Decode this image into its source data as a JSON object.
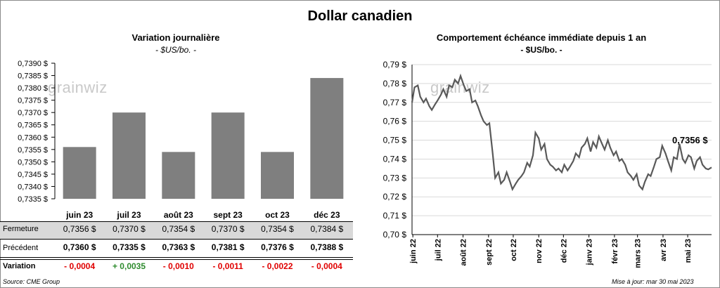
{
  "title": "Dollar canadien",
  "left_chart": {
    "title": "Variation  journalière",
    "unit": "- $US/bo. -"
  },
  "right_chart": {
    "title": "Comportement échéance immédiate depuis 1 an",
    "unit": "- $US/bo. -",
    "last_value_label": "0,7356 $"
  },
  "table": {
    "rows": [
      {
        "label": "Fermeture",
        "values": [
          "0,7356  $",
          "0,7370  $",
          "0,7354  $",
          "0,7370  $",
          "0,7354  $",
          "0,7384  $"
        ]
      },
      {
        "label": "Précédent",
        "values": [
          "0,7360  $",
          "0,7335  $",
          "0,7363  $",
          "0,7381  $",
          "0,7376  $",
          "0,7388  $"
        ]
      },
      {
        "label": "Variation",
        "values": [
          "- 0,0004",
          "+ 0,0035",
          "- 0,0010",
          "- 0,0011",
          "- 0,0022",
          "- 0,0004"
        ]
      }
    ]
  },
  "watermark": "grainwiz",
  "source": "Source: CME Group",
  "updated": "Mise à jour: mar 30 mai 2023",
  "colors": {
    "bar": "#7f7f7f",
    "line": "#595959",
    "positive": "#2e8b2e",
    "negative": "#e00000",
    "table_band": "#d9d9d9"
  },
  "chart_data": [
    {
      "type": "bar",
      "categories": [
        "juin 23",
        "juil 23",
        "août 23",
        "sept 23",
        "oct 23",
        "déc 23"
      ],
      "values": [
        0.7356,
        0.737,
        0.7354,
        0.737,
        0.7354,
        0.7384
      ],
      "ylim": [
        0.7335,
        0.739
      ],
      "yticks": [
        "0,7335 $",
        "0,7340 $",
        "0,7345 $",
        "0,7350 $",
        "0,7355 $",
        "0,7360 $",
        "0,7365 $",
        "0,7370 $",
        "0,7375 $",
        "0,7380 $",
        "0,7385 $",
        "0,7390 $"
      ],
      "grid": false
    },
    {
      "type": "line",
      "ylim": [
        0.7,
        0.79
      ],
      "yticks": [
        "0,70 $",
        "0,71 $",
        "0,72 $",
        "0,73 $",
        "0,74 $",
        "0,75 $",
        "0,76 $",
        "0,77 $",
        "0,78 $",
        "0,79 $"
      ],
      "xticks": [
        "juin 22",
        "juil 22",
        "août 22",
        "sept 22",
        "oct 22",
        "nov 22",
        "déc 22",
        "janv 23",
        "févr 23",
        "mars 23",
        "avr 23",
        "mai 23"
      ],
      "grid": true,
      "series": [
        {
          "x": [
            "2022-05-31",
            "2022-06-03",
            "2022-06-07",
            "2022-06-10",
            "2022-06-14",
            "2022-06-17",
            "2022-06-21",
            "2022-06-24",
            "2022-06-28",
            "2022-07-01",
            "2022-07-05",
            "2022-07-08",
            "2022-07-12",
            "2022-07-15",
            "2022-07-19",
            "2022-07-22",
            "2022-07-26",
            "2022-07-29",
            "2022-08-02",
            "2022-08-05",
            "2022-08-09",
            "2022-08-12",
            "2022-08-16",
            "2022-08-19",
            "2022-08-23",
            "2022-08-26",
            "2022-08-30",
            "2022-09-02",
            "2022-09-06",
            "2022-09-09",
            "2022-09-13",
            "2022-09-16",
            "2022-09-20",
            "2022-09-23",
            "2022-09-27",
            "2022-09-30",
            "2022-10-04",
            "2022-10-07",
            "2022-10-11",
            "2022-10-14",
            "2022-10-18",
            "2022-10-21",
            "2022-10-25",
            "2022-10-28",
            "2022-11-01",
            "2022-11-04",
            "2022-11-08",
            "2022-11-11",
            "2022-11-15",
            "2022-11-18",
            "2022-11-22",
            "2022-11-25",
            "2022-11-29",
            "2022-12-02",
            "2022-12-06",
            "2022-12-09",
            "2022-12-13",
            "2022-12-16",
            "2022-12-20",
            "2022-12-23",
            "2022-12-27",
            "2022-12-30",
            "2023-01-03",
            "2023-01-06",
            "2023-01-10",
            "2023-01-13",
            "2023-01-17",
            "2023-01-20",
            "2023-01-24",
            "2023-01-27",
            "2023-01-31",
            "2023-02-03",
            "2023-02-07",
            "2023-02-10",
            "2023-02-14",
            "2023-02-17",
            "2023-02-21",
            "2023-02-24",
            "2023-02-28",
            "2023-03-03",
            "2023-03-07",
            "2023-03-10",
            "2023-03-14",
            "2023-03-17",
            "2023-03-21",
            "2023-03-24",
            "2023-03-28",
            "2023-03-31",
            "2023-04-04",
            "2023-04-07",
            "2023-04-11",
            "2023-04-14",
            "2023-04-18",
            "2023-04-21",
            "2023-04-25",
            "2023-04-28",
            "2023-05-02",
            "2023-05-05",
            "2023-05-09",
            "2023-05-12",
            "2023-05-16",
            "2023-05-19",
            "2023-05-23",
            "2023-05-26",
            "2023-05-30"
          ],
          "values": [
            0.77,
            0.778,
            0.779,
            0.773,
            0.77,
            0.772,
            0.768,
            0.766,
            0.769,
            0.771,
            0.774,
            0.777,
            0.773,
            0.779,
            0.778,
            0.782,
            0.78,
            0.784,
            0.779,
            0.776,
            0.777,
            0.77,
            0.771,
            0.768,
            0.763,
            0.76,
            0.758,
            0.759,
            0.743,
            0.73,
            0.733,
            0.727,
            0.729,
            0.733,
            0.728,
            0.724,
            0.727,
            0.729,
            0.731,
            0.733,
            0.738,
            0.736,
            0.742,
            0.754,
            0.751,
            0.745,
            0.748,
            0.74,
            0.737,
            0.736,
            0.734,
            0.735,
            0.733,
            0.737,
            0.734,
            0.736,
            0.739,
            0.743,
            0.741,
            0.746,
            0.748,
            0.751,
            0.744,
            0.749,
            0.746,
            0.752,
            0.748,
            0.745,
            0.75,
            0.746,
            0.742,
            0.744,
            0.739,
            0.74,
            0.737,
            0.733,
            0.731,
            0.729,
            0.732,
            0.726,
            0.724,
            0.728,
            0.732,
            0.731,
            0.736,
            0.74,
            0.741,
            0.747,
            0.743,
            0.739,
            0.734,
            0.741,
            0.74,
            0.748,
            0.74,
            0.738,
            0.742,
            0.741,
            0.735,
            0.739,
            0.741,
            0.737,
            0.735,
            0.7345,
            0.7356
          ]
        }
      ]
    }
  ]
}
